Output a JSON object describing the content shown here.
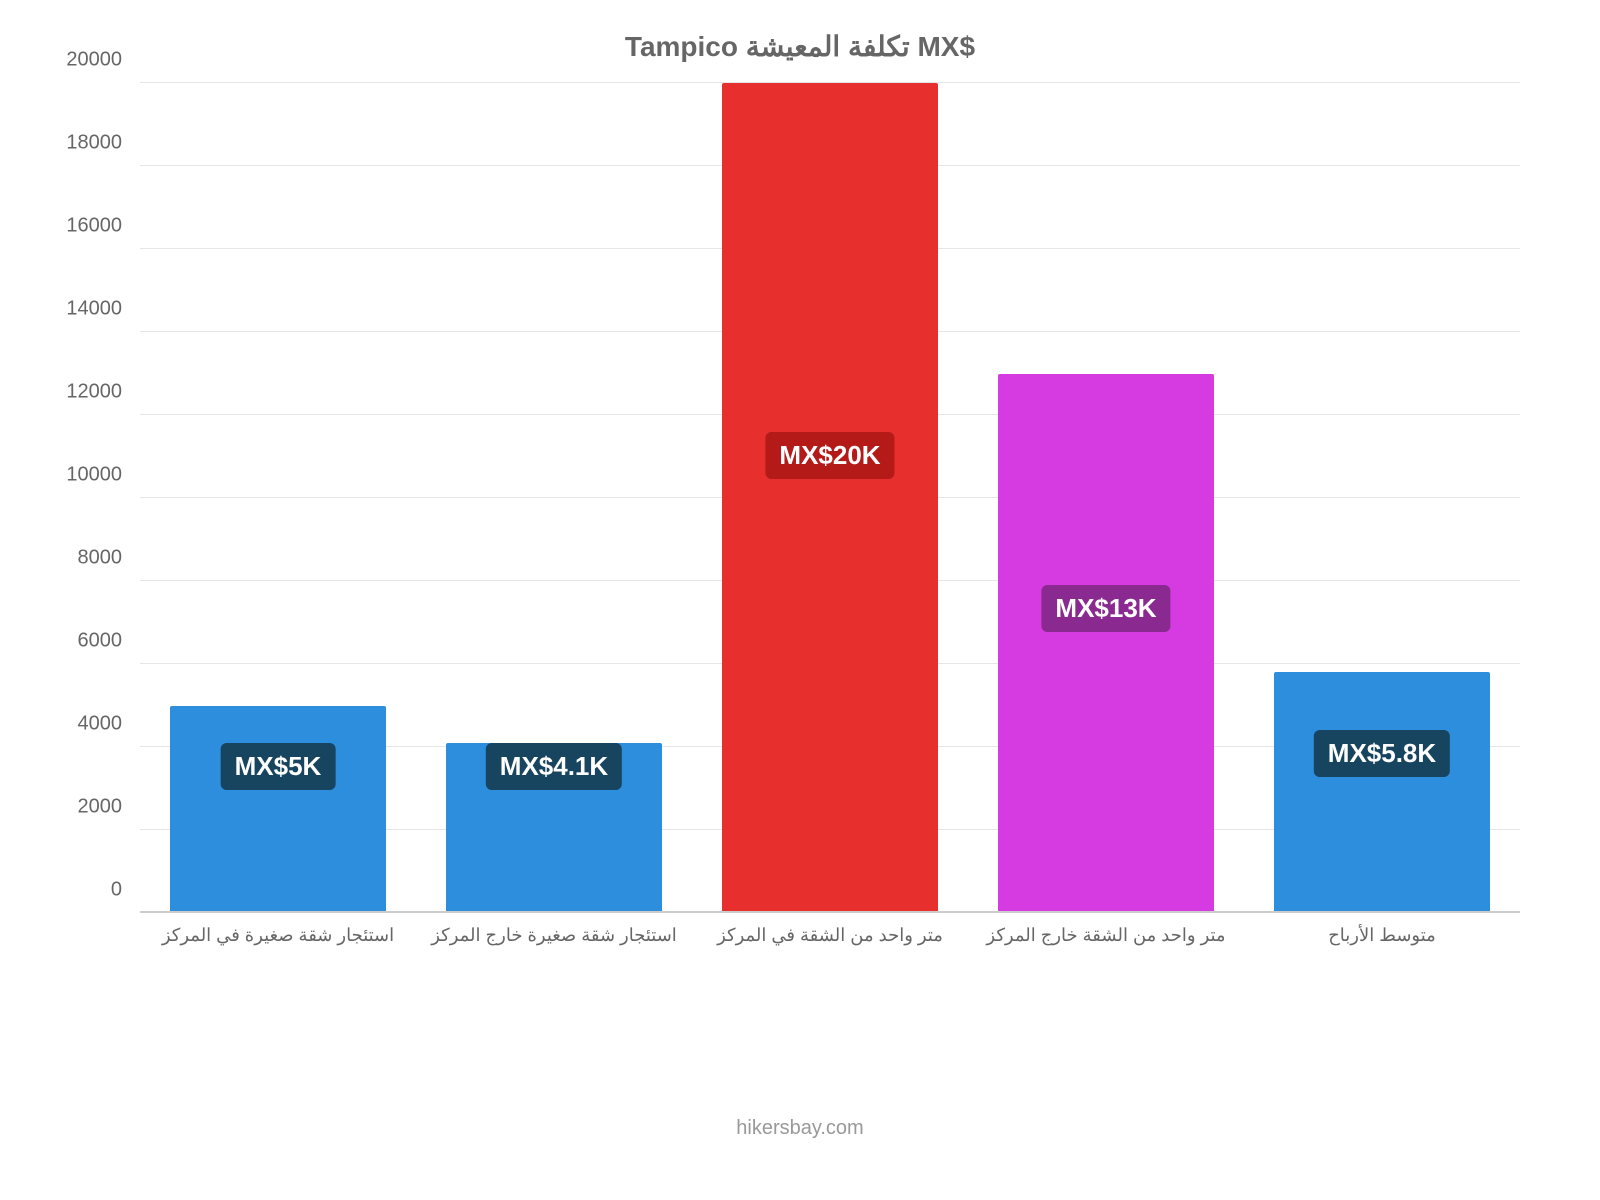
{
  "chart": {
    "type": "bar",
    "title": "Tampico تكلفة المعيشة MX$",
    "title_color": "#666666",
    "title_fontsize": 28,
    "background_color": "#ffffff",
    "grid_color": "#e6e6e6",
    "axis_label_color": "#666666",
    "y_axis": {
      "min": 0,
      "max": 20000,
      "ticks": [
        0,
        2000,
        4000,
        6000,
        8000,
        10000,
        12000,
        14000,
        16000,
        18000,
        20000
      ],
      "tick_fontsize": 20
    },
    "x_label_fontsize": 18,
    "bar_width_ratio": 0.78,
    "data_label_fontsize": 26,
    "bars": [
      {
        "category": "استئجار شقة صغيرة في المركز",
        "value": 5000,
        "display_label": "MX$5K",
        "bar_color": "#2e8ede",
        "label_bg": "#17445f",
        "label_text_color": "#ffffff",
        "label_center_value": 3500
      },
      {
        "category": "استئجار شقة صغيرة خارج المركز",
        "value": 4100,
        "display_label": "MX$4.1K",
        "bar_color": "#2e8ede",
        "label_bg": "#17445f",
        "label_text_color": "#ffffff",
        "label_center_value": 3500
      },
      {
        "category": "متر واحد من الشقة في المركز",
        "value": 20000,
        "display_label": "MX$20K",
        "bar_color": "#e7302e",
        "label_bg": "#b31a18",
        "label_text_color": "#ffffff",
        "label_center_value": 11000
      },
      {
        "category": "متر واحد من الشقة خارج المركز",
        "value": 13000,
        "display_label": "MX$13K",
        "bar_color": "#d53be0",
        "label_bg": "#8a2a91",
        "label_text_color": "#ffffff",
        "label_center_value": 7300
      },
      {
        "category": "متوسط الأرباح",
        "value": 5800,
        "display_label": "MX$5.8K",
        "bar_color": "#2e8ede",
        "label_bg": "#17445f",
        "label_text_color": "#ffffff",
        "label_center_value": 3800
      }
    ],
    "attribution": "hikersbay.com",
    "attribution_color": "#999999"
  }
}
